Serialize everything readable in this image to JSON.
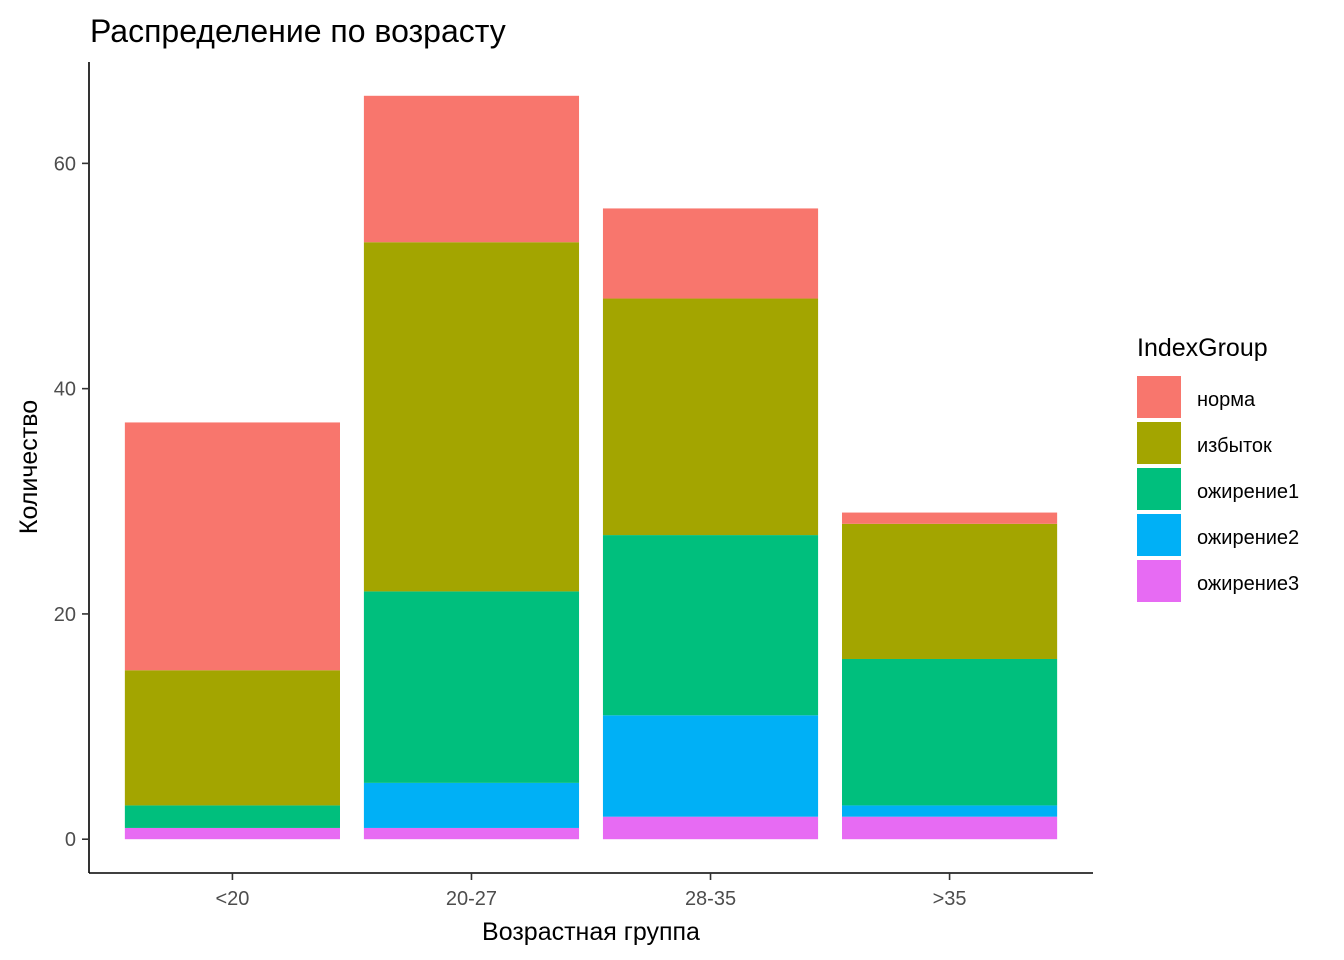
{
  "chart_data": {
    "type": "bar",
    "stacked": true,
    "title": "Распределение по возрасту",
    "xlabel": "Возрастная группа",
    "ylabel": "Количество",
    "categories": [
      "<20",
      "20-27",
      "28-35",
      ">35"
    ],
    "yticks": [
      0,
      20,
      40,
      60
    ],
    "ylim": [
      -3,
      69
    ],
    "grid": false,
    "legend": {
      "title": "IndexGroup",
      "position": "right"
    },
    "series": [
      {
        "name": "норма",
        "color": "#F8766D",
        "values": [
          22,
          13,
          8,
          1
        ]
      },
      {
        "name": "избыток",
        "color": "#A3A500",
        "values": [
          12,
          31,
          21,
          12
        ]
      },
      {
        "name": "ожирение1",
        "color": "#00BF7D",
        "values": [
          2,
          17,
          16,
          13
        ]
      },
      {
        "name": "ожирение2",
        "color": "#00B0F6",
        "values": [
          0,
          4,
          9,
          1
        ]
      },
      {
        "name": "ожирение3",
        "color": "#E76BF3",
        "values": [
          1,
          1,
          2,
          2
        ]
      }
    ]
  }
}
